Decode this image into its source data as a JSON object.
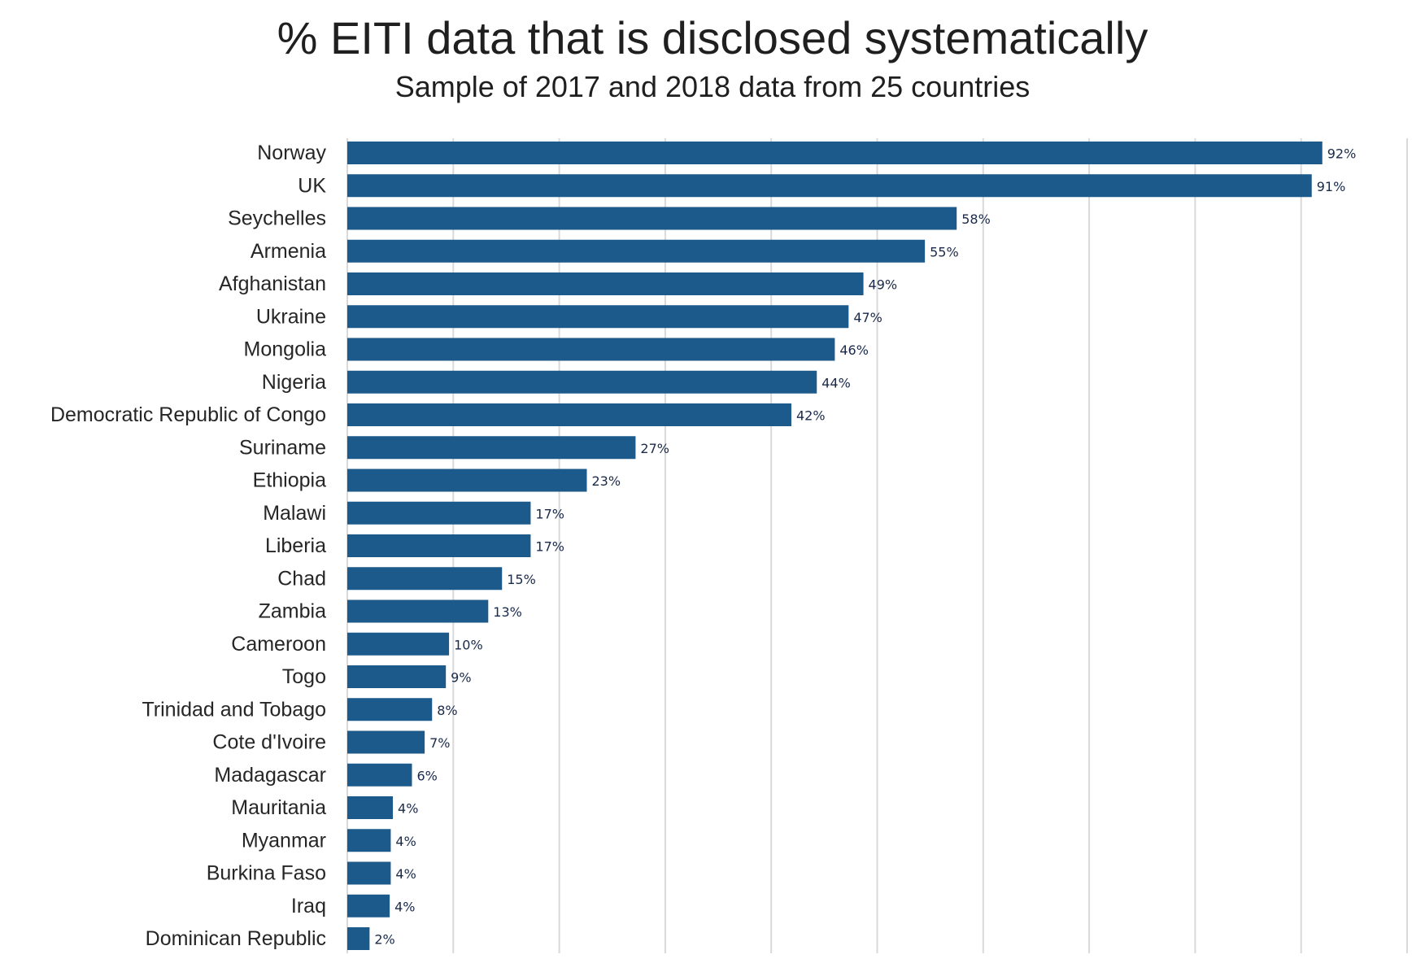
{
  "chart_data": {
    "type": "bar",
    "orientation": "horizontal",
    "title": "% EITI data that is disclosed systematically",
    "subtitle": "Sample of 2017 and 2018 data from 25 countries",
    "xlabel": "",
    "ylabel": "",
    "xlim": [
      0,
      100
    ],
    "grid": true,
    "bar_color": "#1b5a8a",
    "categories": [
      "Norway",
      "UK",
      "Seychelles",
      "Armenia",
      "Afghanistan",
      "Ukraine",
      "Mongolia",
      "Nigeria",
      "Democratic Republic of Congo",
      "Suriname",
      "Ethiopia",
      "Malawi",
      "Liberia",
      "Chad",
      "Zambia",
      "Cameroon",
      "Togo",
      "Trinidad and Tobago",
      "Cote d'Ivoire",
      "Madagascar",
      "Mauritania",
      "Myanmar",
      "Burkina Faso",
      "Iraq",
      "Dominican Republic"
    ],
    "values": [
      92,
      91,
      57.5,
      54.5,
      48.7,
      47.3,
      46,
      44.3,
      41.9,
      27.2,
      22.6,
      17.3,
      17.3,
      14.6,
      13.3,
      9.6,
      9.3,
      8,
      7.3,
      6.1,
      4.3,
      4.1,
      4.1,
      4,
      2.1
    ],
    "value_labels": [
      "92%",
      "91%",
      "58%",
      "55%",
      "49%",
      "47%",
      "46%",
      "44%",
      "42%",
      "27%",
      "23%",
      "17%",
      "17%",
      "15%",
      "13%",
      "10%",
      "9%",
      "8%",
      "7%",
      "6%",
      "4%",
      "4%",
      "4%",
      "4%",
      "2%"
    ]
  }
}
